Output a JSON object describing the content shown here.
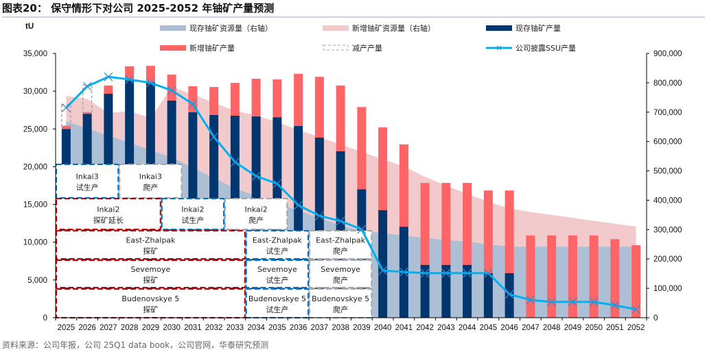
{
  "title": "图表20：  保守情形下对公司 2025-2052 年铀矿产量预测",
  "source": "资料来源：公司年报，公司 25Q1 data book，公司官网，华泰研究预测",
  "chart_data": {
    "type": "bar",
    "title": "",
    "ylabel": "tU",
    "ylim": [
      0,
      35000
    ],
    "y2lim": [
      0,
      900000
    ],
    "yticks": [
      "0",
      "5,000",
      "10,000",
      "15,000",
      "20,000",
      "25,000",
      "30,000",
      "35,000"
    ],
    "y2ticks": [
      "0",
      "100,000",
      "200,000",
      "300,000",
      "400,000",
      "500,000",
      "600,000",
      "700,000",
      "800,000",
      "900,000"
    ],
    "legend_position": "top",
    "categories": [
      "2025",
      "2026",
      "2027",
      "2028",
      "2029",
      "2030",
      "2031",
      "2032",
      "2033",
      "2034",
      "2035",
      "2036",
      "2037",
      "2038",
      "2039",
      "2040",
      "2041",
      "2042",
      "2043",
      "2044",
      "2045",
      "2046",
      "2047",
      "2048",
      "2049",
      "2050",
      "2051",
      "2052"
    ],
    "series": [
      {
        "name": "现存铀矿资源量（右轴）",
        "type": "area",
        "axis": "right",
        "color": "#adbfd4",
        "values": [
          669000,
          645000,
          620000,
          596000,
          571000,
          546000,
          511000,
          476000,
          441000,
          415000,
          390000,
          365000,
          340000,
          315000,
          296000,
          288000,
          280000,
          272000,
          265000,
          259000,
          250000,
          242000,
          242000,
          242000,
          242000,
          242000,
          242000,
          242000
        ]
      },
      {
        "name": "新增铀矿资源量（右轴）",
        "type": "area",
        "axis": "right",
        "stacked": true,
        "color": "#f2cacc",
        "values": [
          86000,
          100000,
          77000,
          108000,
          108000,
          240000,
          249000,
          256000,
          263000,
          275000,
          275000,
          275000,
          275000,
          275000,
          269000,
          252000,
          235000,
          208000,
          185000,
          163000,
          145000,
          130000,
          118000,
          108000,
          98000,
          88000,
          78000,
          68000
        ]
      },
      {
        "name": "现存铀矿产量",
        "type": "bar",
        "axis": "left",
        "color": "#02366f",
        "values": [
          25000,
          27000,
          29650,
          31450,
          31200,
          28750,
          27200,
          26850,
          26750,
          26650,
          26550,
          25400,
          23850,
          22050,
          17000,
          14250,
          12050,
          7000,
          7000,
          7000,
          5900,
          5900,
          0,
          0,
          0,
          0,
          0,
          0
        ]
      },
      {
        "name": "新增铀矿产量",
        "type": "bar",
        "axis": "left",
        "stacked": true,
        "color": "#ff6466",
        "values": [
          400,
          200,
          1100,
          1850,
          2150,
          3450,
          3450,
          3700,
          4350,
          5000,
          5000,
          6900,
          8050,
          8700,
          10900,
          10950,
          10900,
          10850,
          10850,
          10850,
          10950,
          10950,
          10900,
          10900,
          10900,
          10900,
          10400,
          9600
        ]
      },
      {
        "name": "减产产量",
        "type": "bar-outline",
        "axis": "left",
        "stacked": true,
        "color": "#a6a6a6",
        "values": [
          2800,
          3600,
          0,
          0,
          0,
          0,
          0,
          0,
          0,
          0,
          0,
          0,
          0,
          0,
          0,
          0,
          0,
          0,
          0,
          0,
          0,
          0,
          0,
          0,
          0,
          0,
          0,
          0
        ]
      },
      {
        "name": "公司披露SSU产量",
        "type": "line",
        "axis": "left",
        "color": "#00b0f0",
        "values": [
          27800,
          30650,
          31900,
          31550,
          31100,
          30100,
          28300,
          23950,
          20600,
          18750,
          17750,
          14900,
          13500,
          12800,
          11700,
          6250,
          6050,
          5900,
          5900,
          5900,
          5900,
          3100,
          2350,
          2100,
          2100,
          2100,
          1650,
          1100
        ]
      }
    ],
    "annotations": [
      {
        "row": 0,
        "line1": "Inkai3",
        "line2": "试生产",
        "from": "2025",
        "to": "2027",
        "stage": "trial"
      },
      {
        "row": 0,
        "line1": "Inkai3",
        "line2": "爬产",
        "from": "2028",
        "to": "2030",
        "stage": "ramp"
      },
      {
        "row": 1,
        "line1": "Inkai2",
        "line2": "探矿延长",
        "from": "2025",
        "to": "2029",
        "stage": "explore"
      },
      {
        "row": 1,
        "line1": "Inkai2",
        "line2": "试生产",
        "from": "2030",
        "to": "2032",
        "stage": "trial"
      },
      {
        "row": 1,
        "line1": "Inkai2",
        "line2": "爬产",
        "from": "2033",
        "to": "2035",
        "stage": "ramp"
      },
      {
        "row": 2,
        "line1": "East-Zhalpak",
        "line2": "探矿",
        "from": "2025",
        "to": "2033",
        "stage": "explore"
      },
      {
        "row": 2,
        "line1": "East-Zhalpak",
        "line2": "试生产",
        "from": "2034",
        "to": "2036",
        "stage": "trial"
      },
      {
        "row": 2,
        "line1": "East-Zhalpak",
        "line2": "爬产",
        "from": "2037",
        "to": "2039",
        "stage": "ramp"
      },
      {
        "row": 3,
        "line1": "Sevemoye",
        "line2": "探矿",
        "from": "2025",
        "to": "2033",
        "stage": "explore"
      },
      {
        "row": 3,
        "line1": "Sevemoye",
        "line2": "试生产",
        "from": "2034",
        "to": "2036",
        "stage": "trial"
      },
      {
        "row": 3,
        "line1": "Sevemoye",
        "line2": "爬产",
        "from": "2037",
        "to": "2039",
        "stage": "ramp"
      },
      {
        "row": 4,
        "line1": "Budenovskye 5",
        "line2": "探矿",
        "from": "2025",
        "to": "2033",
        "stage": "explore"
      },
      {
        "row": 4,
        "line1": "Budenovskye 5",
        "line2": "试生产",
        "from": "2034",
        "to": "2036",
        "stage": "trial"
      },
      {
        "row": 4,
        "line1": "Budenovskye 5",
        "line2": "爬产",
        "from": "2037",
        "to": "2039",
        "stage": "ramp"
      }
    ],
    "stage_colors": {
      "explore": "#c00000",
      "trial": "#0070c0",
      "ramp": "#a6a6a6"
    }
  }
}
